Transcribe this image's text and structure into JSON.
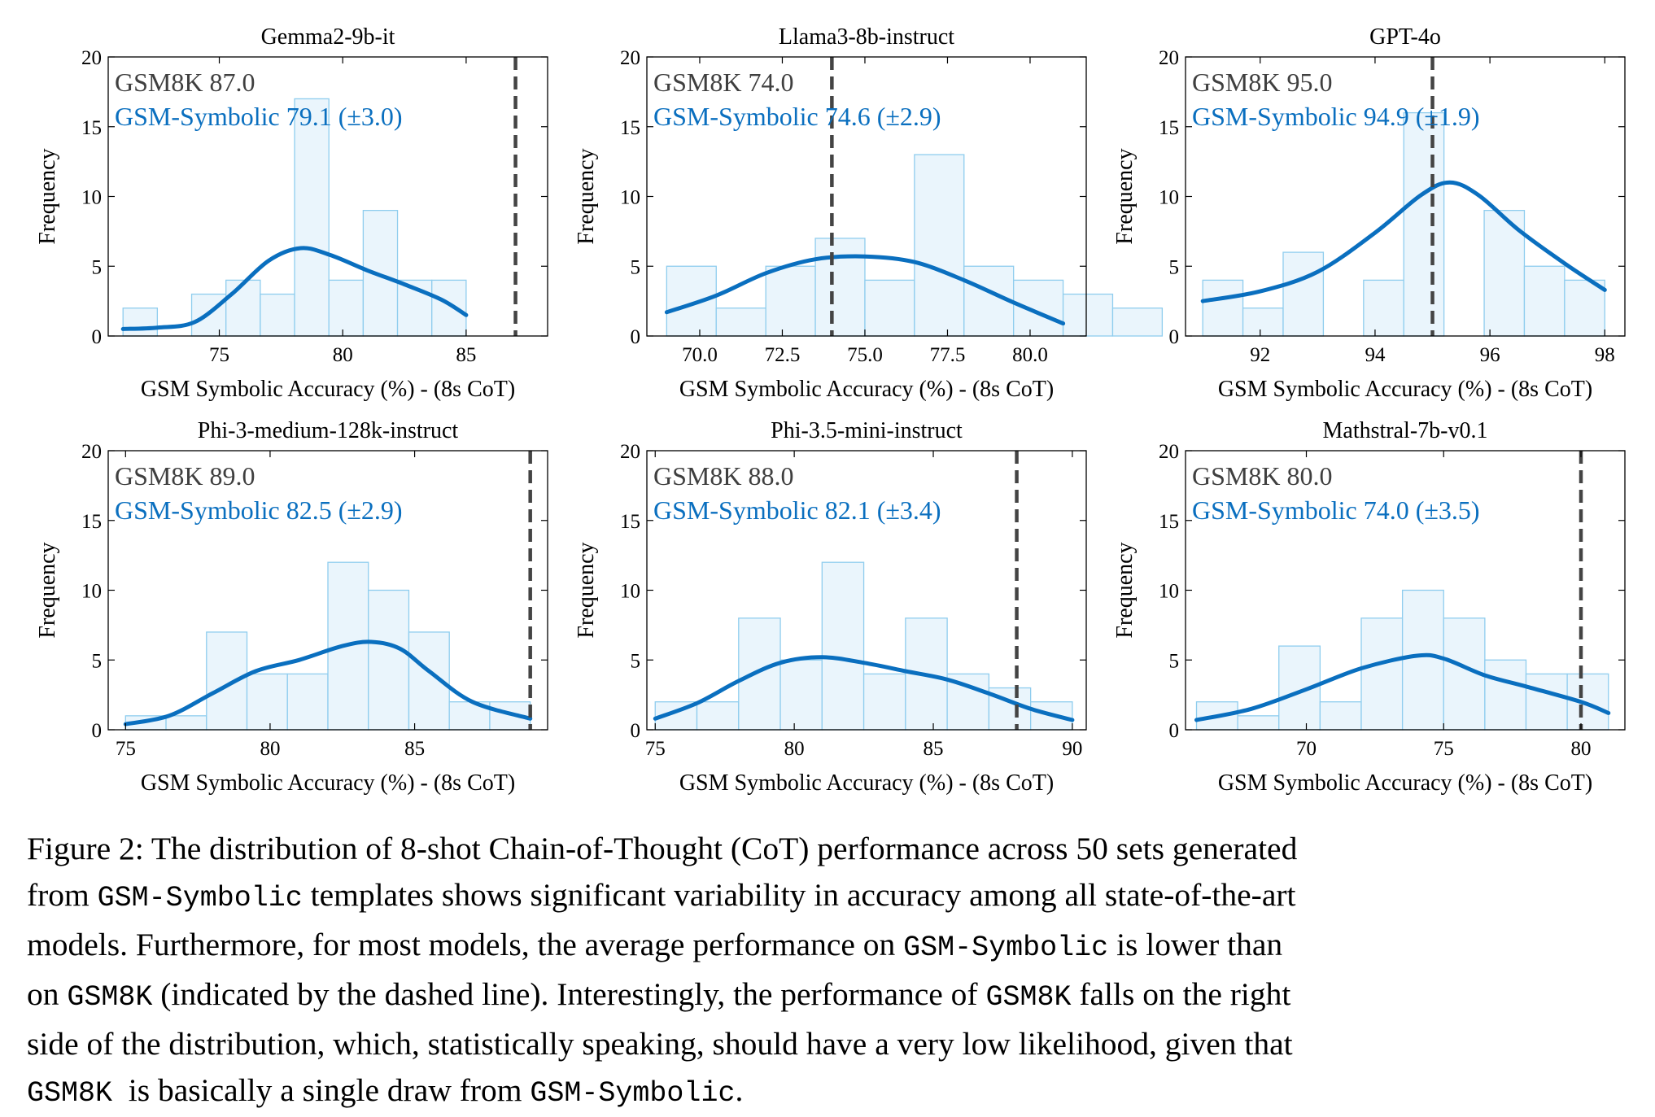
{
  "colors": {
    "hist_fill": "#eaf5fc",
    "hist_edge": "#8fcdee",
    "kde": "#0a6fbf",
    "gsm8k_text": "#3f3f3f",
    "symbolic_text": "#0a6fbf",
    "dashed_line": "#444444"
  },
  "figure": {
    "xlabel": "GSM Symbolic Accuracy (%) - (8s CoT)",
    "ylabel": "Frequency"
  },
  "chart_data": [
    {
      "type": "bar",
      "title": "Gemma2-9b-it",
      "xlabel": "GSM Symbolic Accuracy (%) - (8s CoT)",
      "ylabel": "Frequency",
      "xlim": [
        70.5,
        88.3
      ],
      "ylim": [
        0,
        20
      ],
      "xticks": [
        75,
        80,
        85
      ],
      "xtick_labels": [
        "75",
        "80",
        "85"
      ],
      "yticks": [
        0,
        5,
        10,
        15,
        20
      ],
      "bin_start": 71.1,
      "bin_width": 1.39,
      "counts": [
        2,
        0,
        3,
        4,
        3,
        17,
        4,
        9,
        4,
        4
      ],
      "kde_x": [
        71.1,
        72.5,
        74.0,
        75.5,
        77.0,
        78.3,
        79.5,
        81.0,
        82.5,
        84.0,
        85.0
      ],
      "kde_y": [
        0.5,
        0.6,
        1.0,
        3.0,
        5.4,
        6.3,
        5.8,
        4.7,
        3.7,
        2.6,
        1.5
      ],
      "gsm8k": 87.0,
      "gsm8k_label": "GSM8K 87.0",
      "symbolic_label": "GSM-Symbolic 79.1 (±3.0)"
    },
    {
      "type": "bar",
      "title": "Llama3-8b-instruct",
      "xlabel": "GSM Symbolic Accuracy (%) - (8s CoT)",
      "ylabel": "Frequency",
      "xlim": [
        68.4,
        81.7
      ],
      "ylim": [
        0,
        20
      ],
      "xticks": [
        70.0,
        72.5,
        75.0,
        77.5,
        80.0
      ],
      "xtick_labels": [
        "70.0",
        "72.5",
        "75.0",
        "77.5",
        "80.0"
      ],
      "yticks": [
        0,
        5,
        10,
        15,
        20
      ],
      "bin_start": 69.0,
      "bin_width": 1.5,
      "counts": [
        5,
        2,
        5,
        7,
        4,
        13,
        5,
        4,
        3,
        2
      ],
      "kde_x": [
        69.0,
        70.5,
        72.0,
        73.5,
        75.0,
        76.5,
        78.0,
        79.5,
        81.0
      ],
      "kde_y": [
        1.7,
        2.9,
        4.5,
        5.5,
        5.7,
        5.3,
        4.0,
        2.4,
        0.9
      ],
      "gsm8k": 74.0,
      "gsm8k_label": "GSM8K 74.0",
      "symbolic_label": "GSM-Symbolic 74.6 (±2.9)"
    },
    {
      "type": "bar",
      "title": "GPT-4o",
      "xlabel": "GSM Symbolic Accuracy (%) - (8s CoT)",
      "ylabel": "Frequency",
      "xlim": [
        90.7,
        98.35
      ],
      "ylim": [
        0,
        20
      ],
      "xticks": [
        92,
        94,
        96,
        98
      ],
      "xtick_labels": [
        "92",
        "94",
        "96",
        "98"
      ],
      "yticks": [
        0,
        5,
        10,
        15,
        20
      ],
      "bin_start": 91.0,
      "bin_width": 0.7,
      "counts": [
        4,
        2,
        6,
        0,
        4,
        16,
        0,
        9,
        5,
        4
      ],
      "kde_x": [
        91.0,
        92.0,
        93.0,
        94.0,
        94.8,
        95.3,
        95.8,
        96.5,
        97.3,
        98.0
      ],
      "kde_y": [
        2.5,
        3.2,
        4.6,
        7.4,
        10.1,
        11.0,
        10.1,
        7.6,
        5.2,
        3.3
      ],
      "gsm8k": 95.0,
      "gsm8k_label": "GSM8K 95.0",
      "symbolic_label": "GSM-Symbolic 94.9 (±1.9)"
    },
    {
      "type": "bar",
      "title": "Phi-3-medium-128k-instruct",
      "xlabel": "GSM Symbolic Accuracy (%) - (8s CoT)",
      "ylabel": "Frequency",
      "xlim": [
        74.4,
        89.6
      ],
      "ylim": [
        0,
        20
      ],
      "xticks": [
        75,
        80,
        85
      ],
      "xtick_labels": [
        "75",
        "80",
        "85"
      ],
      "yticks": [
        0,
        5,
        10,
        15,
        20
      ],
      "bin_start": 75.0,
      "bin_width": 1.4,
      "counts": [
        1,
        1,
        7,
        4,
        4,
        12,
        10,
        7,
        2,
        2
      ],
      "kde_x": [
        75.0,
        76.5,
        78.0,
        79.5,
        81.0,
        82.5,
        83.5,
        84.5,
        85.5,
        87.0,
        89.0
      ],
      "kde_y": [
        0.4,
        1.0,
        2.6,
        4.2,
        5.0,
        6.0,
        6.3,
        5.8,
        4.2,
        2.0,
        0.8
      ],
      "gsm8k": 89.0,
      "gsm8k_label": "GSM8K 89.0",
      "symbolic_label": "GSM-Symbolic 82.5 (±2.9)"
    },
    {
      "type": "bar",
      "title": "Phi-3.5-mini-instruct",
      "xlabel": "GSM Symbolic Accuracy (%) - (8s CoT)",
      "ylabel": "Frequency",
      "xlim": [
        74.7,
        90.5
      ],
      "ylim": [
        0,
        20
      ],
      "xticks": [
        75,
        80,
        85,
        90
      ],
      "xtick_labels": [
        "75",
        "80",
        "85",
        "90"
      ],
      "yticks": [
        0,
        5,
        10,
        15,
        20
      ],
      "bin_start": 75.0,
      "bin_width": 1.5,
      "counts": [
        2,
        2,
        8,
        5,
        12,
        4,
        8,
        4,
        3,
        2
      ],
      "kde_x": [
        75.0,
        76.5,
        78.0,
        79.5,
        81.0,
        82.5,
        84.0,
        85.5,
        87.0,
        88.5,
        90.0
      ],
      "kde_y": [
        0.8,
        1.9,
        3.5,
        4.8,
        5.2,
        4.8,
        4.2,
        3.6,
        2.6,
        1.5,
        0.7
      ],
      "gsm8k": 88.0,
      "gsm8k_label": "GSM8K 88.0",
      "symbolic_label": "GSM-Symbolic 82.1 (±3.4)"
    },
    {
      "type": "bar",
      "title": "Mathstral-7b-v0.1",
      "xlabel": "GSM Symbolic Accuracy (%) - (8s CoT)",
      "ylabel": "Frequency",
      "xlim": [
        65.6,
        81.6
      ],
      "ylim": [
        0,
        20
      ],
      "xticks": [
        70,
        75,
        80
      ],
      "xtick_labels": [
        "70",
        "75",
        "80"
      ],
      "yticks": [
        0,
        5,
        10,
        15,
        20
      ],
      "bin_start": 66.0,
      "bin_width": 1.5,
      "counts": [
        2,
        1,
        6,
        2,
        8,
        10,
        8,
        5,
        4,
        4
      ],
      "kde_x": [
        66.0,
        68.0,
        70.0,
        72.0,
        74.0,
        75.0,
        76.5,
        78.0,
        80.0,
        81.0
      ],
      "kde_y": [
        0.7,
        1.5,
        2.9,
        4.4,
        5.3,
        5.1,
        3.9,
        3.1,
        2.0,
        1.2
      ],
      "gsm8k": 80.0,
      "gsm8k_label": "GSM8K 80.0",
      "symbolic_label": "GSM-Symbolic 74.0 (±3.5)"
    }
  ],
  "caption": {
    "l1": "Figure 2: The distribution of 8-shot Chain-of-Thought (CoT) performance across 50 sets generated",
    "l2a": "from ",
    "l2b": "GSM-Symbolic",
    "l2c": " templates shows significant variability in accuracy among all state-of-the-art",
    "l3a": "models. Furthermore, for most models, the average performance on ",
    "l3b": "GSM-Symbolic",
    "l3c": " is lower than",
    "l4a": "on ",
    "l4b": "GSM8K",
    "l4c": " (indicated by the dashed line). Interestingly, the performance of ",
    "l4d": "GSM8K",
    "l4e": " falls on the right",
    "l5": "side of the distribution, which, statistically speaking, should have a very low likelihood, given that",
    "l6a": "GSM8K",
    "l6b": "  is basically a single draw from ",
    "l6c": "GSM-Symbolic",
    "l6d": "."
  }
}
